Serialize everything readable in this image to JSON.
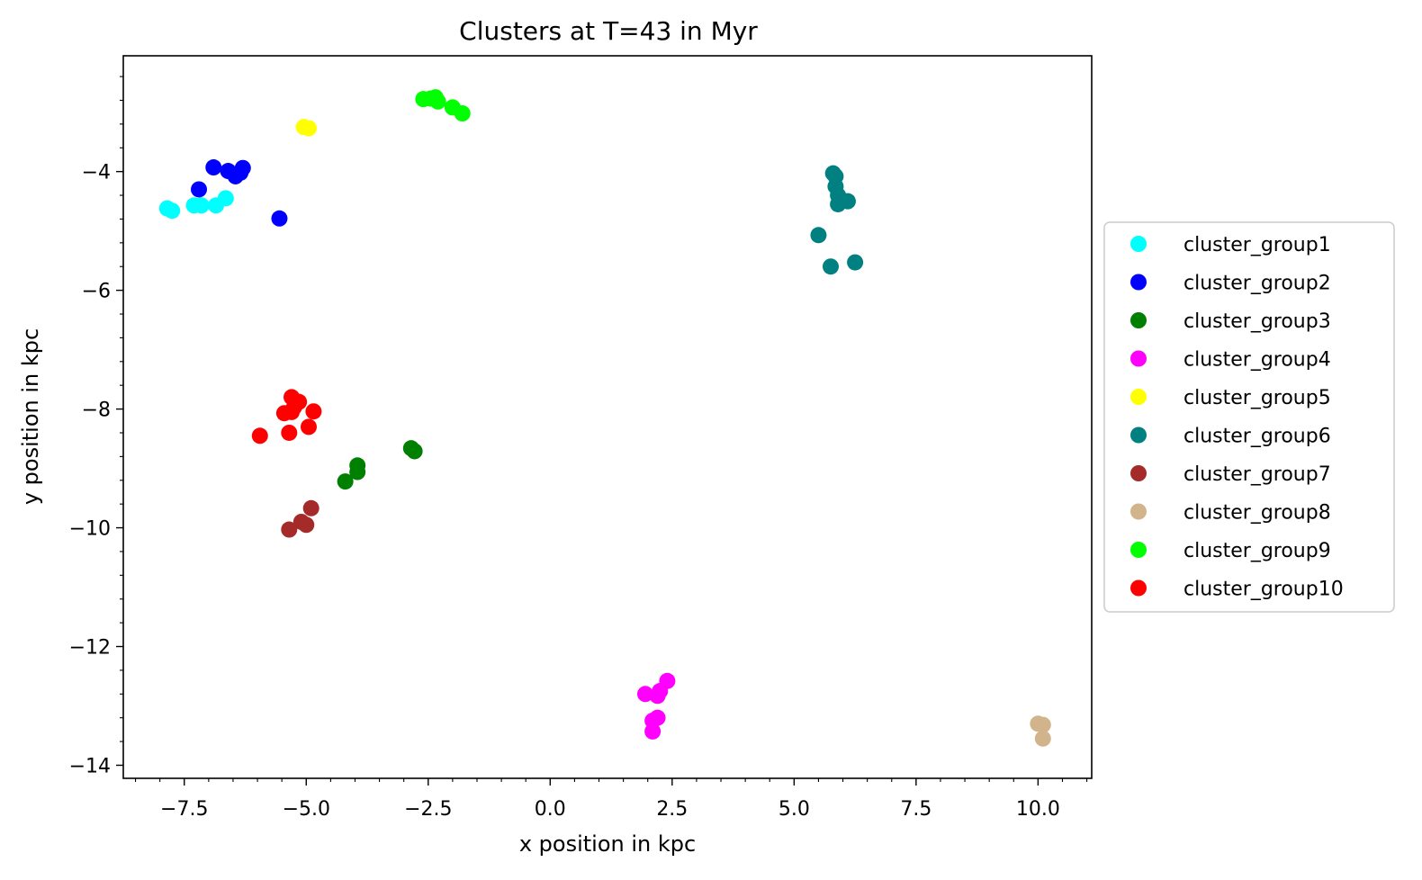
{
  "chart_data": {
    "type": "scatter",
    "title": "Clusters at T=43 in Myr",
    "xlabel": "x position in kpc",
    "ylabel": "y position in kpc",
    "xlim": [
      -8.75,
      11.1
    ],
    "ylim": [
      -14.22,
      -2.05
    ],
    "xticks": [
      -7.5,
      -5.0,
      -2.5,
      0.0,
      2.5,
      5.0,
      7.5,
      10.0
    ],
    "xtick_labels": [
      "−7.5",
      "−5.0",
      "−2.5",
      "0.0",
      "2.5",
      "5.0",
      "7.5",
      "10.0"
    ],
    "yticks": [
      -14,
      -12,
      -10,
      -8,
      -6,
      -4
    ],
    "ytick_labels": [
      "−14",
      "−12",
      "−10",
      "−8",
      "−6",
      "−4"
    ],
    "grid": false,
    "legend_position": "outside-right",
    "series": [
      {
        "name": "cluster_group1",
        "color": "#00ffff",
        "points": [
          [
            -7.85,
            -4.62
          ],
          [
            -7.75,
            -4.66
          ],
          [
            -7.3,
            -4.57
          ],
          [
            -7.15,
            -4.57
          ],
          [
            -6.85,
            -4.57
          ],
          [
            -6.65,
            -4.45
          ]
        ]
      },
      {
        "name": "cluster_group2",
        "color": "#0000ff",
        "points": [
          [
            -7.2,
            -4.3
          ],
          [
            -6.9,
            -3.93
          ],
          [
            -6.6,
            -3.99
          ],
          [
            -6.45,
            -4.08
          ],
          [
            -6.35,
            -4.02
          ],
          [
            -6.3,
            -3.94
          ],
          [
            -5.55,
            -4.79
          ]
        ]
      },
      {
        "name": "cluster_group3",
        "color": "#008000",
        "points": [
          [
            -4.2,
            -9.22
          ],
          [
            -3.95,
            -8.95
          ],
          [
            -3.95,
            -9.06
          ],
          [
            -2.85,
            -8.66
          ],
          [
            -2.78,
            -8.71
          ]
        ]
      },
      {
        "name": "cluster_group4",
        "color": "#ff00ff",
        "points": [
          [
            1.95,
            -12.8
          ],
          [
            2.2,
            -12.83
          ],
          [
            2.25,
            -12.75
          ],
          [
            2.4,
            -12.58
          ],
          [
            2.1,
            -13.25
          ],
          [
            2.2,
            -13.2
          ],
          [
            2.1,
            -13.43
          ]
        ]
      },
      {
        "name": "cluster_group5",
        "color": "#ffff00",
        "points": [
          [
            -5.05,
            -3.25
          ],
          [
            -4.95,
            -3.27
          ]
        ]
      },
      {
        "name": "cluster_group6",
        "color": "#008080",
        "points": [
          [
            5.8,
            -4.03
          ],
          [
            5.85,
            -4.08
          ],
          [
            5.85,
            -4.25
          ],
          [
            5.9,
            -4.4
          ],
          [
            5.9,
            -4.55
          ],
          [
            6.1,
            -4.5
          ],
          [
            5.5,
            -5.07
          ],
          [
            5.75,
            -5.6
          ],
          [
            6.25,
            -5.53
          ]
        ]
      },
      {
        "name": "cluster_group7",
        "color": "#a52a2a",
        "points": [
          [
            -5.35,
            -10.03
          ],
          [
            -5.1,
            -9.9
          ],
          [
            -5.0,
            -9.95
          ],
          [
            -4.9,
            -9.67
          ]
        ]
      },
      {
        "name": "cluster_group8",
        "color": "#d2b48c",
        "points": [
          [
            10.0,
            -13.3
          ],
          [
            10.1,
            -13.32
          ],
          [
            10.1,
            -13.55
          ]
        ]
      },
      {
        "name": "cluster_group9",
        "color": "#00ff00",
        "points": [
          [
            -2.6,
            -2.78
          ],
          [
            -2.45,
            -2.77
          ],
          [
            -2.35,
            -2.75
          ],
          [
            -2.3,
            -2.82
          ],
          [
            -2.0,
            -2.92
          ],
          [
            -1.8,
            -3.02
          ]
        ]
      },
      {
        "name": "cluster_group10",
        "color": "#ff0000",
        "points": [
          [
            -5.3,
            -7.8
          ],
          [
            -5.15,
            -7.88
          ],
          [
            -5.45,
            -8.07
          ],
          [
            -5.3,
            -8.05
          ],
          [
            -5.25,
            -7.97
          ],
          [
            -4.85,
            -8.04
          ],
          [
            -4.95,
            -8.3
          ],
          [
            -5.35,
            -8.4
          ],
          [
            -5.95,
            -8.45
          ]
        ]
      }
    ]
  }
}
